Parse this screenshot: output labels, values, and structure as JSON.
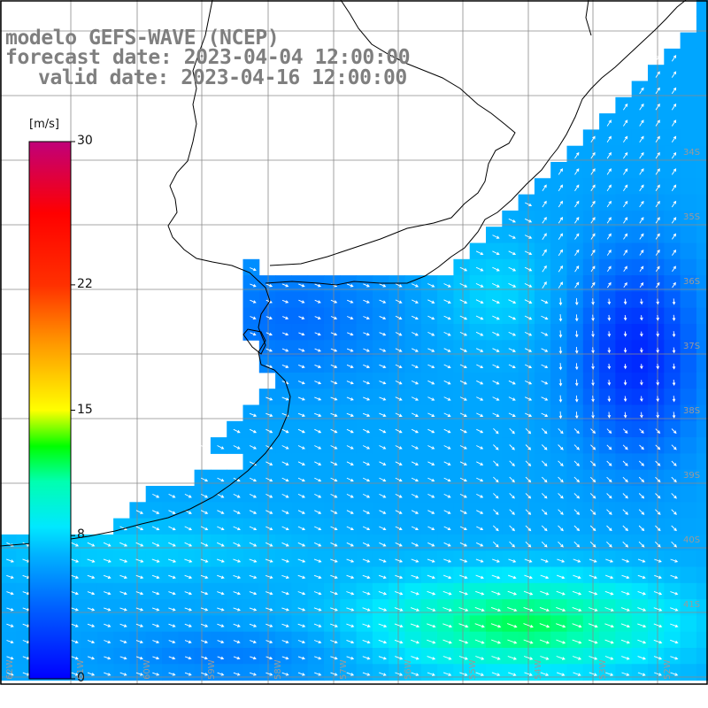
{
  "title": {
    "line1": "modelo GEFS-WAVE (NCEP)",
    "line2": "forecast date: 2023-04-04 12:00:00",
    "line3": "valid date: 2023-04-16 12:00:00"
  },
  "colorbar": {
    "units": "[m/s]",
    "ticks": [
      {
        "value": 30,
        "label": "30"
      },
      {
        "value": 22,
        "label": "22"
      },
      {
        "value": 15,
        "label": "15"
      },
      {
        "value": 8,
        "label": "8"
      },
      {
        "value": 0,
        "label": "0"
      }
    ],
    "range": [
      0,
      30
    ],
    "colors": [
      "#0000ff",
      "#0088ff",
      "#00e5ff",
      "#00ff00",
      "#ffff00",
      "#ff8000",
      "#ff0000",
      "#c0007a"
    ]
  },
  "map": {
    "variable": "wind speed and direction (10 m)",
    "land_color": "#ffffff",
    "grid_color": "#8a8a8a",
    "coast_color": "#000000",
    "lat_labels": [
      "34S",
      "35S",
      "36S",
      "37S",
      "38S",
      "39S",
      "40S",
      "41S"
    ],
    "lon_labels": [
      "62W",
      "61W",
      "60W",
      "59W",
      "58W",
      "57W",
      "56W",
      "55W",
      "54W",
      "53W",
      "52W"
    ]
  }
}
